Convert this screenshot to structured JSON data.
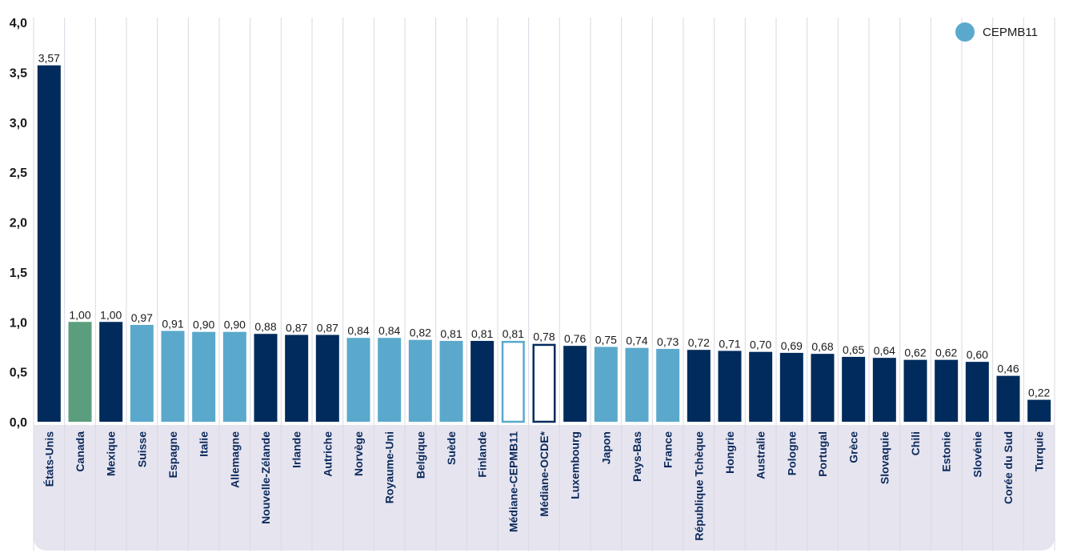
{
  "chart_data": {
    "type": "bar",
    "title": "",
    "xlabel": "",
    "ylabel": "",
    "ylim": [
      0,
      4
    ],
    "yticks": [
      "0,0",
      "0,5",
      "1,0",
      "1,5",
      "2,0",
      "2,5",
      "3,0",
      "3,5",
      "4,0"
    ],
    "legend": {
      "label": "CEPMB11",
      "position": "top-right"
    },
    "categories": [
      "États-Unis",
      "Canada",
      "Mexique",
      "Suisse",
      "Espagne",
      "Italie",
      "Allemagne",
      "Nouvelle-Zélande",
      "Irlande",
      "Autriche",
      "Norvège",
      "Royaume-Uni",
      "Belgique",
      "Suède",
      "Finlande",
      "Médiane-CEPMB11",
      "Médiane-OCDE*",
      "Luxembourg",
      "Japon",
      "Pays-Bas",
      "France",
      "République Tchèque",
      "Hongrie",
      "Australie",
      "Pologne",
      "Portugal",
      "Grèce",
      "Slovaquie",
      "Chili",
      "Estonie",
      "Slovénie",
      "Corée du Sud",
      "Turquie"
    ],
    "values": [
      3.57,
      1.0,
      1.0,
      0.97,
      0.91,
      0.9,
      0.9,
      0.88,
      0.87,
      0.87,
      0.84,
      0.84,
      0.82,
      0.81,
      0.81,
      0.81,
      0.78,
      0.76,
      0.75,
      0.74,
      0.73,
      0.72,
      0.71,
      0.7,
      0.69,
      0.68,
      0.65,
      0.64,
      0.62,
      0.62,
      0.6,
      0.46,
      0.22
    ],
    "value_labels": [
      "3,57",
      "1,00",
      "1,00",
      "0,97",
      "0,91",
      "0,90",
      "0,90",
      "0,88",
      "0,87",
      "0,87",
      "0,84",
      "0,84",
      "0,82",
      "0,81",
      "0,81",
      "0,81",
      "0,78",
      "0,76",
      "0,75",
      "0,74",
      "0,73",
      "0,72",
      "0,71",
      "0,70",
      "0,69",
      "0,68",
      "0,65",
      "0,64",
      "0,62",
      "0,62",
      "0,60",
      "0,46",
      "0,22"
    ],
    "groups": [
      "oecd",
      "canada",
      "oecd",
      "pmprb",
      "pmprb",
      "pmprb",
      "pmprb",
      "oecd",
      "oecd",
      "oecd",
      "pmprb",
      "pmprb",
      "pmprb",
      "pmprb",
      "oecd",
      "median-pmprb",
      "median-oecd",
      "oecd",
      "pmprb",
      "pmprb",
      "pmprb",
      "oecd",
      "oecd",
      "oecd",
      "oecd",
      "oecd",
      "oecd",
      "oecd",
      "oecd",
      "oecd",
      "oecd",
      "oecd",
      "oecd"
    ]
  },
  "colors": {
    "oecd": "#002b5c",
    "pmprb": "#5aa9cc",
    "canada": "#5a9e7e",
    "median_pmprb_stroke": "#5aa9cc",
    "median_oecd_stroke": "#002b5c",
    "label_band": "#e6e4ef",
    "gridline": "#d9d9e3"
  }
}
